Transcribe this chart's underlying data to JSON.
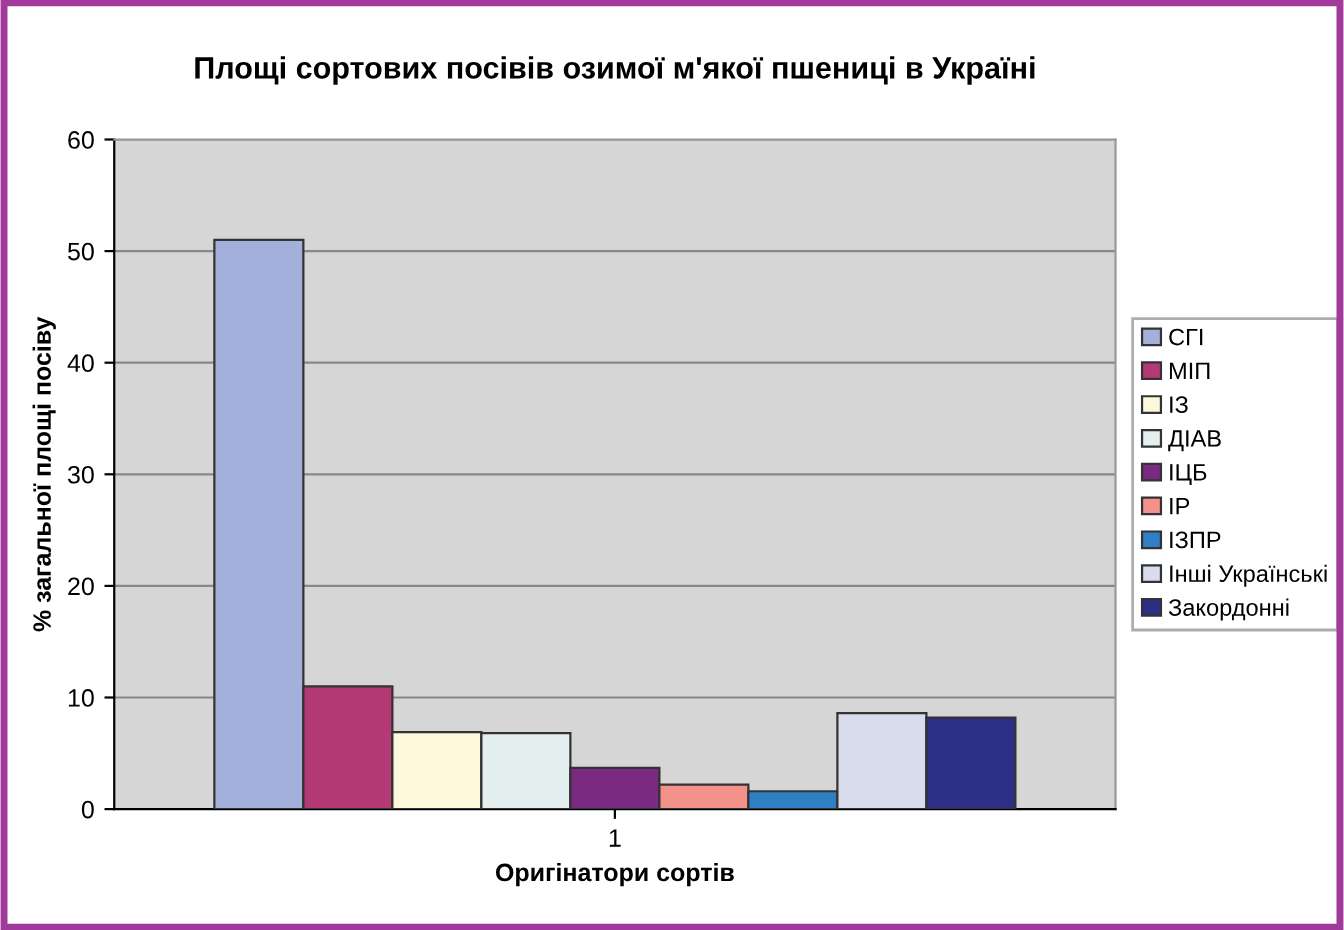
{
  "chart_data": {
    "type": "bar",
    "title": "Площі сортових посівів озимої м'якої пшениці в Україні",
    "xlabel": "Оригінатори сортів",
    "ylabel": "% загальної площі посіву",
    "categories": [
      "1"
    ],
    "series": [
      {
        "name": "СГІ",
        "color": "#a3b0dc",
        "values": [
          51
        ]
      },
      {
        "name": "МІП",
        "color": "#b33a74",
        "values": [
          11
        ]
      },
      {
        "name": "ІЗ",
        "color": "#fdf8dc",
        "values": [
          6.9
        ]
      },
      {
        "name": "ДІАВ",
        "color": "#e3f0ef",
        "values": [
          6.8
        ]
      },
      {
        "name": "ІЦБ",
        "color": "#7a2a80",
        "values": [
          3.7
        ]
      },
      {
        "name": "ІР",
        "color": "#f3918a",
        "values": [
          2.2
        ]
      },
      {
        "name": "ІЗПР",
        "color": "#2f7fc4",
        "values": [
          1.6
        ]
      },
      {
        "name": "Інші Українські",
        "color": "#d8dcec",
        "values": [
          8.6
        ]
      },
      {
        "name": "Закордонні",
        "color": "#2d2e86",
        "values": [
          8.2
        ]
      }
    ],
    "ylim": [
      0,
      60
    ],
    "yticks": [
      0,
      10,
      20,
      30,
      40,
      50,
      60
    ],
    "grid": "y",
    "legend": "right"
  }
}
